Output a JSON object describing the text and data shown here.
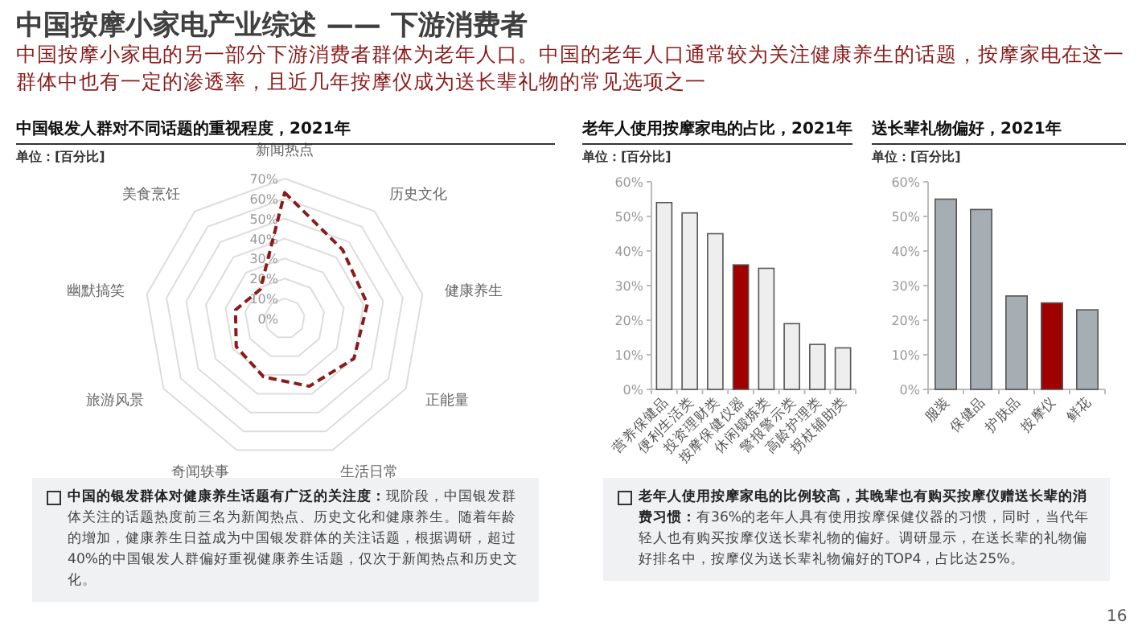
{
  "chart_data": [
    {
      "type": "radar",
      "title": "中国银发人群对不同话题的重视程度，2021年",
      "subtitle": "单位：[百分比]",
      "categories": [
        "新闻热点",
        "历史文化",
        "健康养生",
        "正能量",
        "生活日常",
        "奇闻轶事",
        "旅游风景",
        "幽默搞笑",
        "美食烹饪"
      ],
      "series": [
        {
          "color": "#8b1a1a",
          "values": [
            63,
            45,
            42,
            40,
            36,
            31,
            28,
            25,
            19
          ]
        }
      ],
      "ylim": [
        0,
        70
      ],
      "yticks": [
        {
          "value": 0,
          "label": "0%"
        },
        {
          "value": 10,
          "label": "10%"
        },
        {
          "value": 20,
          "label": "20%"
        },
        {
          "value": 30,
          "label": "30%"
        },
        {
          "value": 40,
          "label": "40%"
        },
        {
          "value": 50,
          "label": "50%"
        },
        {
          "value": 60,
          "label": "60%"
        },
        {
          "value": 70,
          "label": "70%"
        }
      ],
      "line_style": "dashed",
      "marker": "none",
      "annotations": [
        "中国按摩小家电产业综述 —— 下游消费者",
        "中国按摩小家电的另一部分下游消费者群体为老年人口。中国的老年人口通常较为关注健康养生的话题，按摩家电在这一群体中也有一定的渗透率，且近几年按摩仪成为送长辈礼物的常见选项之一",
        "**中国的银发群体对健康养生话题有广泛的关注度：**现阶段，中国银发群体关注的话题热度前三名为新闻热点、历史文化和健康养生。随着年龄的增加，健康养生日益成为中国银发群体的关注话题，根据调研，超过40%的中国银发人群偏好重视健康养生话题，仅次于新闻热点和历史文化。"
      ]
    },
    {
      "type": "bar",
      "title": "老年人使用按摩家电的占比，2021年",
      "subtitle": "单位：[百分比]",
      "categories": [
        "营养保健品",
        "便利生活类",
        "投资理财类",
        "按摩保健仪器",
        "休闲锻炼类",
        "警报警示类",
        "高龄护理类",
        "拐杖辅助类"
      ],
      "values": [
        54,
        51,
        45,
        36,
        35,
        19,
        13,
        12
      ],
      "colors": [
        "#eeeeee",
        "#eeeeee",
        "#eeeeee",
        "#a00000",
        "#eeeeee",
        "#eeeeee",
        "#eeeeee",
        "#eeeeee"
      ],
      "ylim": [
        0,
        60
      ],
      "yticks": [
        {
          "value": 0,
          "label": "0%"
        },
        {
          "value": 10,
          "label": "10%"
        },
        {
          "value": 20,
          "label": "20%"
        },
        {
          "value": 30,
          "label": "30%"
        },
        {
          "value": 40,
          "label": "40%"
        },
        {
          "value": 50,
          "label": "50%"
        },
        {
          "value": 60,
          "label": "60%"
        }
      ],
      "annotations": [
        "**老年人使用按摩家电的比例较高，其晚辈也有购买按摩仪赠送长辈的消费习惯：**有36%的老年人具有使用按摩保健仪器的习惯，同时，当代年轻人也有购买按摩仪送长辈礼物的偏好。调研显示，在送长辈的礼物偏好排名中，按摩仪为送长辈礼物偏好的TOP4，占比达25%。"
      ]
    },
    {
      "type": "bar",
      "title": "送长辈礼物偏好，2021年",
      "subtitle": "单位：[百分比]",
      "categories": [
        "服装",
        "保健品",
        "护肤品",
        "按摩仪",
        "鲜花"
      ],
      "values": [
        55,
        52,
        27,
        25,
        23
      ],
      "colors": [
        "#a6adb3",
        "#a6adb3",
        "#a6adb3",
        "#a00000",
        "#a6adb3"
      ],
      "ylim": [
        0,
        60
      ],
      "yticks": [
        {
          "value": 0,
          "label": "0%"
        },
        {
          "value": 10,
          "label": "10%"
        },
        {
          "value": 20,
          "label": "20%"
        },
        {
          "value": 30,
          "label": "30%"
        },
        {
          "value": 40,
          "label": "40%"
        },
        {
          "value": 50,
          "label": "50%"
        },
        {
          "value": 60,
          "label": "60%"
        }
      ],
      "annotations": [
        "16"
      ]
    }
  ]
}
